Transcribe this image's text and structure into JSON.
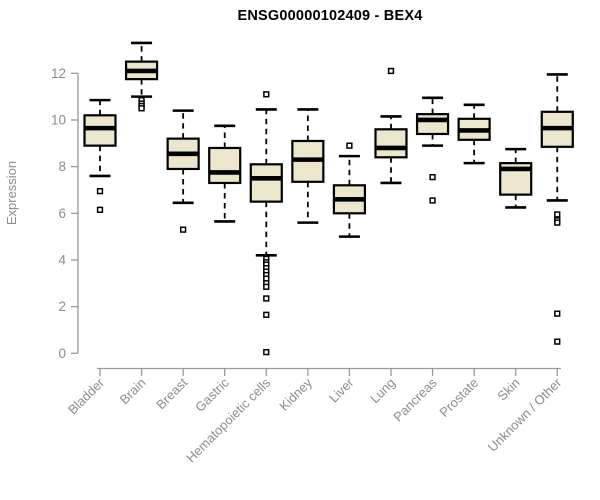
{
  "chart_data": {
    "type": "boxplot",
    "title": "ENSG00000102409 - BEX4",
    "ylabel": "Expression",
    "xlabel": "",
    "yticks": [
      0,
      2,
      4,
      6,
      8,
      10,
      12
    ],
    "ylim": [
      -0.3,
      13.6
    ],
    "grid": false,
    "legend": null,
    "categories": [
      "Bladder",
      "Brain",
      "Breast",
      "Gastric",
      "Hematopoietic cells",
      "Kidney",
      "Liver",
      "Lung",
      "Pancreas",
      "Prostate",
      "Skin",
      "Unknown / Other"
    ],
    "boxes": [
      {
        "category": "Bladder",
        "whisker_low": 7.6,
        "q1": 8.9,
        "median": 9.65,
        "q3": 10.2,
        "whisker_high": 10.85,
        "outliers": [
          6.95,
          6.15
        ]
      },
      {
        "category": "Brain",
        "whisker_low": 11.0,
        "q1": 11.75,
        "median": 12.1,
        "q3": 12.5,
        "whisker_high": 13.3,
        "outliers": [
          10.85,
          10.7,
          10.6,
          10.5
        ]
      },
      {
        "category": "Breast",
        "whisker_low": 6.45,
        "q1": 7.9,
        "median": 8.55,
        "q3": 9.2,
        "whisker_high": 10.4,
        "outliers": [
          5.3
        ]
      },
      {
        "category": "Gastric",
        "whisker_low": 5.65,
        "q1": 7.3,
        "median": 7.75,
        "q3": 8.8,
        "whisker_high": 9.75,
        "outliers": []
      },
      {
        "category": "Hematopoietic cells",
        "whisker_low": 4.2,
        "q1": 6.5,
        "median": 7.5,
        "q3": 8.1,
        "whisker_high": 10.45,
        "outliers": [
          11.1,
          4.05,
          3.9,
          3.8,
          3.65,
          3.5,
          3.35,
          3.2,
          3.0,
          2.85,
          2.35,
          1.65,
          0.05
        ]
      },
      {
        "category": "Kidney",
        "whisker_low": 5.6,
        "q1": 7.35,
        "median": 8.3,
        "q3": 9.1,
        "whisker_high": 10.45,
        "outliers": []
      },
      {
        "category": "Liver",
        "whisker_low": 5.0,
        "q1": 6.0,
        "median": 6.6,
        "q3": 7.2,
        "whisker_high": 8.45,
        "outliers": [
          8.9
        ]
      },
      {
        "category": "Lung",
        "whisker_low": 7.3,
        "q1": 8.4,
        "median": 8.8,
        "q3": 9.6,
        "whisker_high": 10.15,
        "outliers": [
          12.1
        ]
      },
      {
        "category": "Pancreas",
        "whisker_low": 8.9,
        "q1": 9.4,
        "median": 10.0,
        "q3": 10.25,
        "whisker_high": 10.95,
        "outliers": [
          7.55,
          6.55
        ]
      },
      {
        "category": "Prostate",
        "whisker_low": 8.15,
        "q1": 9.15,
        "median": 9.55,
        "q3": 10.05,
        "whisker_high": 10.65,
        "outliers": []
      },
      {
        "category": "Skin",
        "whisker_low": 6.25,
        "q1": 6.8,
        "median": 7.9,
        "q3": 8.15,
        "whisker_high": 8.75,
        "outliers": []
      },
      {
        "category": "Unknown / Other",
        "whisker_low": 6.55,
        "q1": 8.85,
        "median": 9.65,
        "q3": 10.35,
        "whisker_high": 11.95,
        "outliers": [
          5.95,
          5.7,
          5.6,
          1.7,
          0.5
        ]
      }
    ],
    "colors": {
      "box_fill": "#ECE7CC",
      "box_border": "#000000",
      "median": "#000000",
      "whisker": "#000000",
      "outlier_fill": "#ffffff",
      "axis_line": "#9A9A9A",
      "tick_label": "#8C8C8C",
      "title": "#000000",
      "background": "#ffffff"
    }
  }
}
